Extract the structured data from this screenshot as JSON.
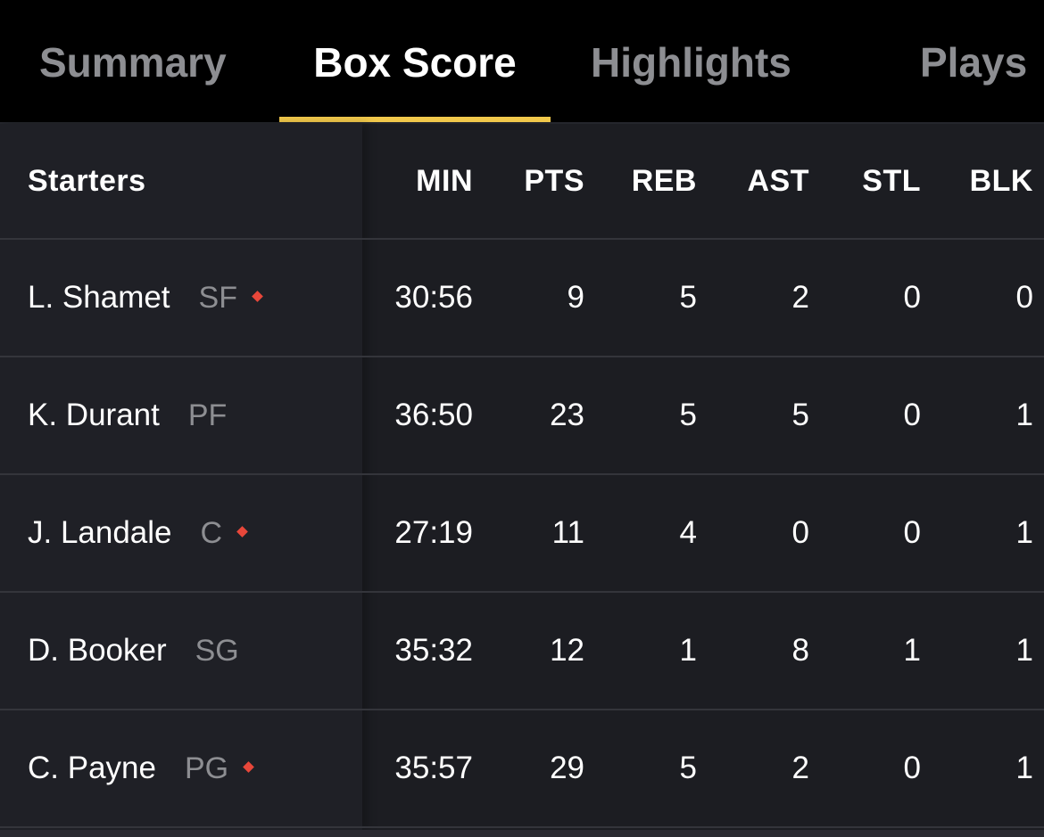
{
  "tabs": {
    "summary": "Summary",
    "box_score": "Box Score",
    "highlights": "Highlights",
    "plays": "Plays",
    "active": "Box Score"
  },
  "colors": {
    "accent": "#f1c84b",
    "status_dot": "#e8473a"
  },
  "table": {
    "header": {
      "label": "Starters",
      "min": "MIN",
      "pts": "PTS",
      "reb": "REB",
      "ast": "AST",
      "stl": "STL",
      "blk": "BLK"
    },
    "rows": [
      {
        "name": "L. Shamet",
        "pos": "SF",
        "marker": true,
        "min": "30:56",
        "pts": "9",
        "reb": "5",
        "ast": "2",
        "stl": "0",
        "blk": "0"
      },
      {
        "name": "K. Durant",
        "pos": "PF",
        "marker": false,
        "min": "36:50",
        "pts": "23",
        "reb": "5",
        "ast": "5",
        "stl": "0",
        "blk": "1"
      },
      {
        "name": "J. Landale",
        "pos": "C",
        "marker": true,
        "min": "27:19",
        "pts": "11",
        "reb": "4",
        "ast": "0",
        "stl": "0",
        "blk": "1"
      },
      {
        "name": "D. Booker",
        "pos": "SG",
        "marker": false,
        "min": "35:32",
        "pts": "12",
        "reb": "1",
        "ast": "8",
        "stl": "1",
        "blk": "1"
      },
      {
        "name": "C. Payne",
        "pos": "PG",
        "marker": true,
        "min": "35:57",
        "pts": "29",
        "reb": "5",
        "ast": "2",
        "stl": "0",
        "blk": "1"
      }
    ]
  }
}
